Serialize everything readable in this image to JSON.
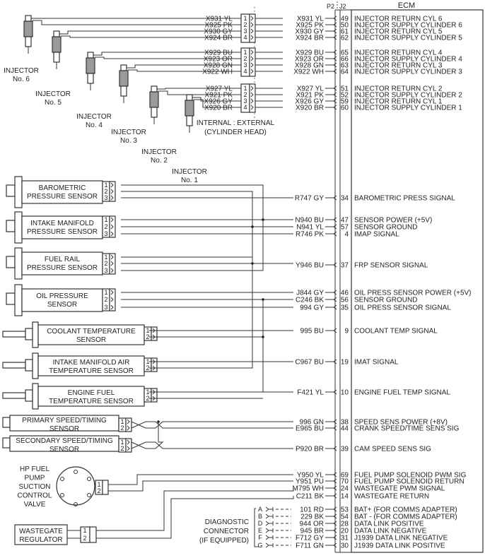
{
  "ecm": {
    "title": "ECM",
    "p2_label": "P2",
    "j2_label": "J2",
    "pins": [
      {
        "wire": "X931 YL",
        "pin": "49",
        "label": "INJECTOR RETURN CYL 6"
      },
      {
        "wire": "X925 PK",
        "pin": "50",
        "label": "INJECTOR SUPPLY CYLINDER 6"
      },
      {
        "wire": "X930 GY",
        "pin": "61",
        "label": "INJECTOR RETURN CYL 5"
      },
      {
        "wire": "X924 BR",
        "pin": "62",
        "label": "INJECTOR SUPPLY CYLINDER 5"
      },
      {
        "wire": "X929 BU",
        "pin": "65",
        "label": "INJECTOR RETURN CYL 4"
      },
      {
        "wire": "X923 OR",
        "pin": "66",
        "label": "INJECTOR SUPPLY CYLINDER 4"
      },
      {
        "wire": "X928 GN",
        "pin": "63",
        "label": "INJECTOR RETURN CYL 3"
      },
      {
        "wire": "X922 WH",
        "pin": "64",
        "label": "INJECTOR SUPPLY CYLINDER 3"
      },
      {
        "wire": "X927 YL",
        "pin": "51",
        "label": "INJECTOR RETURN CYL 2"
      },
      {
        "wire": "X921 PK",
        "pin": "52",
        "label": "INJECTOR SUPPLY CYLINDER 2"
      },
      {
        "wire": "X926 GY",
        "pin": "59",
        "label": "INJECTOR RETURN CYL 1"
      },
      {
        "wire": "X920 BR",
        "pin": "60",
        "label": "INJECTOR SUPPLY CYLINDER 1"
      },
      {
        "wire": "R747 GY",
        "pin": "34",
        "label": "BAROMETRIC PRESS SIGNAL"
      },
      {
        "wire": "N940 BU",
        "pin": "47",
        "label": "SENSOR POWER (+5V)"
      },
      {
        "wire": "N941 YL",
        "pin": "57",
        "label": "SENSOR GROUND"
      },
      {
        "wire": "R746 PK",
        "pin": "4",
        "label": "IMAP SIGNAL"
      },
      {
        "wire": "Y946 BU",
        "pin": "37",
        "label": "FRP SENSOR SIGNAL"
      },
      {
        "wire": "J844 GY",
        "pin": "46",
        "label": "OIL PRESS SENSOR POWER (+5V)"
      },
      {
        "wire": "C246 BK",
        "pin": "56",
        "label": "SENSOR GROUND"
      },
      {
        "wire": "994 GY",
        "pin": "35",
        "label": "OIL PRESS SENSOR SIGNAL"
      },
      {
        "wire": "995 BU",
        "pin": "9",
        "label": "COOLANT TEMP SIGNAL"
      },
      {
        "wire": "C967 BU",
        "pin": "19",
        "label": "IMAT SIGNAL"
      },
      {
        "wire": "F421 YL",
        "pin": "10",
        "label": "ENGINE FUEL TEMP SIGNAL"
      },
      {
        "wire": "996 GN",
        "pin": "38",
        "label": "SPEED SENS POWER (+8V)"
      },
      {
        "wire": "E965 BU",
        "pin": "44",
        "label": "CRANK SPEED/TIME SENS SIG"
      },
      {
        "wire": "P920 BR",
        "pin": "39",
        "label": "CAM SPEED SENS SIG"
      },
      {
        "wire": "Y950 YL",
        "pin": "69",
        "label": "FUEL PUMP SOLENOID PWM SIG"
      },
      {
        "wire": "Y951 PU",
        "pin": "70",
        "label": "FUEL PUMP SOLENOID RETURN"
      },
      {
        "wire": "M795 WH",
        "pin": "24",
        "label": "WASTEGATE PWM SIGNAL"
      },
      {
        "wire": "C211 BK",
        "pin": "14",
        "label": "WASTEGATE RETURN"
      },
      {
        "wire": "101 RD",
        "pin": "53",
        "label": "BAT+ (FOR COMMS ADAPTER)"
      },
      {
        "wire": "229 BK",
        "pin": "54",
        "label": "BAT - (FOR COMMS ADAPTER)"
      },
      {
        "wire": "944 OR",
        "pin": "28",
        "label": "DATA LINK POSITIVE"
      },
      {
        "wire": "945 BR",
        "pin": "20",
        "label": "DATA LINK NEGATIVE"
      },
      {
        "wire": "F712 GY",
        "pin": "31",
        "label": "J1939 DATA LINK NEGATIVE"
      },
      {
        "wire": "F711 GN",
        "pin": "30",
        "label": "J1939 DATA LINK POSITIVE"
      }
    ]
  },
  "head_connector": {
    "internal_external": "INTERNAL : EXTERNAL",
    "cylinder_head": "(CYLINDER HEAD)",
    "pin_numbers": [
      "1",
      "2",
      "3",
      "4"
    ]
  },
  "injectors": [
    {
      "line1": "INJECTOR",
      "line2": "No. 6"
    },
    {
      "line1": "INJECTOR",
      "line2": "No. 5"
    },
    {
      "line1": "INJECTOR",
      "line2": "No. 4"
    },
    {
      "line1": "INJECTOR",
      "line2": "No. 3"
    },
    {
      "line1": "INJECTOR",
      "line2": "No. 2"
    },
    {
      "line1": "INJECTOR",
      "line2": "No. 1"
    }
  ],
  "sensors": [
    {
      "line1": "BAROMETRIC",
      "line2": "PRESSURE SENSOR",
      "pins": [
        "1",
        "2",
        "3"
      ]
    },
    {
      "line1": "INTAKE MANIFOLD",
      "line2": "PRESSURE SENSOR",
      "pins": [
        "1",
        "2",
        "3"
      ]
    },
    {
      "line1": "FUEL RAIL",
      "line2": "PRESSURE SENSOR",
      "pins": [
        "1",
        "2",
        "3"
      ]
    },
    {
      "line1": "OIL PRESSURE",
      "line2": "SENSOR",
      "pins": [
        "1",
        "2",
        "3"
      ]
    },
    {
      "line1": "COOLANT TEMPERATURE",
      "line2": "SENSOR",
      "pins": [
        "1",
        "2"
      ]
    },
    {
      "line1": "INTAKE MANIFOLD AIR",
      "line2": "TEMPERATURE SENSOR",
      "pins": [
        "1",
        "2"
      ]
    },
    {
      "line1": "ENGINE FUEL",
      "line2": "TEMPERATURE SENSOR",
      "pins": [
        "1",
        "2"
      ]
    },
    {
      "line1": "PRIMARY SPEED/TIMING",
      "line2": "SENSOR",
      "pins": [
        "1",
        "2"
      ]
    },
    {
      "line1": "SECONDARY SPEED/TIMING",
      "line2": "SENSOR",
      "pins": [
        "1",
        "2"
      ]
    }
  ],
  "hp_fuel_pump": {
    "lines": [
      "HP FUEL",
      "PUMP",
      "SUCTION",
      "CONTROL",
      "VALVE"
    ],
    "pins": [
      "1",
      "2"
    ]
  },
  "wastegate": {
    "line1": "WASTEGATE",
    "line2": "REGULATOR",
    "pins": [
      "1",
      "2"
    ]
  },
  "diagnostic": {
    "lines": [
      "DIAGNOSTIC",
      "CONNECTOR",
      "(IF EQUIPPED)"
    ],
    "pins": [
      "A",
      "B",
      "D",
      "E",
      "F",
      "G"
    ]
  }
}
